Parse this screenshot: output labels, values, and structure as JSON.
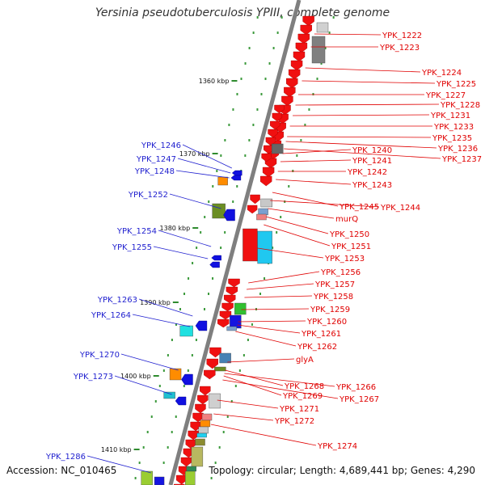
{
  "title": "Yersinia pseudotuberculosis YPIII, complete genome",
  "footer": {
    "accession": "Accession: NC_010465",
    "summary": "Topology: circular; Length: 4,689,441 bp; Genes: 4,290"
  },
  "colors": {
    "backbone": "#7f7f7f",
    "tick": "#2e8b2e",
    "forward_label": "#e00000",
    "reverse_label": "#1f1fcf",
    "arrow_red": "#f01010",
    "arrow_blue": "#1010e0"
  },
  "scale_ticks": [
    "1360 kbp",
    "1370 kbp",
    "1380 kbp",
    "1390 kbp",
    "1400 kbp",
    "1410 kbp"
  ],
  "forward_genes": [
    "YPK_1222",
    "YPK_1223",
    "YPK_1224",
    "YPK_1225",
    "YPK_1227",
    "YPK_1228",
    "YPK_1231",
    "YPK_1233",
    "YPK_1235",
    "YPK_1236",
    "YPK_1237",
    "YPK_1240",
    "YPK_1241",
    "YPK_1242",
    "YPK_1243",
    "YPK_1245",
    "YPK_1244",
    "murQ",
    "YPK_1250",
    "YPK_1251",
    "YPK_1253",
    "YPK_1256",
    "YPK_1257",
    "YPK_1258",
    "YPK_1259",
    "YPK_1260",
    "YPK_1261",
    "YPK_1262",
    "glyA",
    "YPK_1268",
    "YPK_1266",
    "YPK_1269",
    "YPK_1267",
    "YPK_1271",
    "YPK_1272",
    "YPK_1274"
  ],
  "reverse_genes": [
    "YPK_1246",
    "YPK_1247",
    "YPK_1248",
    "YPK_1252",
    "YPK_1254",
    "YPK_1255",
    "YPK_1263",
    "YPK_1264",
    "YPK_1270",
    "YPK_1273",
    "YPK_1286"
  ]
}
